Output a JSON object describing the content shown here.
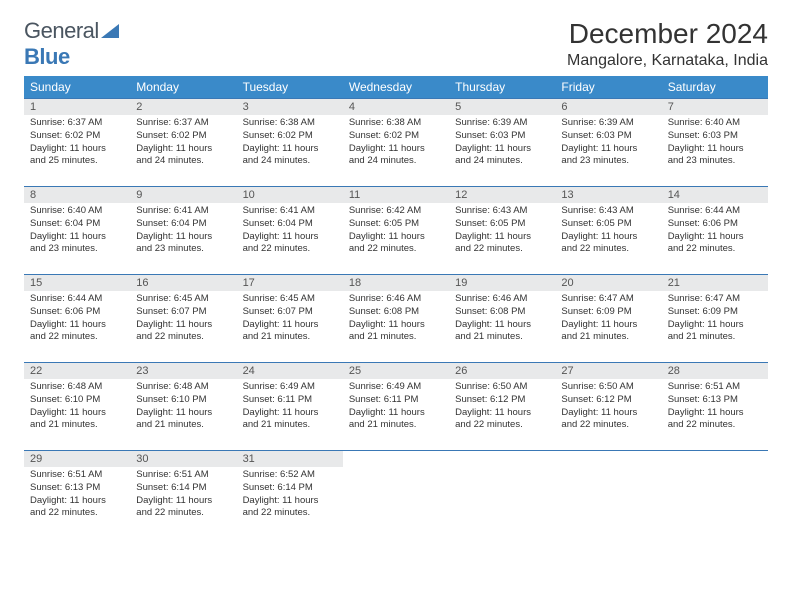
{
  "logo": {
    "general": "General",
    "blue": "Blue"
  },
  "title": "December 2024",
  "location": "Mangalore, Karnataka, India",
  "header_bg": "#3a8ac9",
  "header_text_color": "#ffffff",
  "daynum_bg": "#e8e9ea",
  "row_border_color": "#3a78b5",
  "weekdays": [
    "Sunday",
    "Monday",
    "Tuesday",
    "Wednesday",
    "Thursday",
    "Friday",
    "Saturday"
  ],
  "days": [
    {
      "n": "1",
      "sr": "6:37 AM",
      "ss": "6:02 PM",
      "dh": "11",
      "dm": "25"
    },
    {
      "n": "2",
      "sr": "6:37 AM",
      "ss": "6:02 PM",
      "dh": "11",
      "dm": "24"
    },
    {
      "n": "3",
      "sr": "6:38 AM",
      "ss": "6:02 PM",
      "dh": "11",
      "dm": "24"
    },
    {
      "n": "4",
      "sr": "6:38 AM",
      "ss": "6:02 PM",
      "dh": "11",
      "dm": "24"
    },
    {
      "n": "5",
      "sr": "6:39 AM",
      "ss": "6:03 PM",
      "dh": "11",
      "dm": "24"
    },
    {
      "n": "6",
      "sr": "6:39 AM",
      "ss": "6:03 PM",
      "dh": "11",
      "dm": "23"
    },
    {
      "n": "7",
      "sr": "6:40 AM",
      "ss": "6:03 PM",
      "dh": "11",
      "dm": "23"
    },
    {
      "n": "8",
      "sr": "6:40 AM",
      "ss": "6:04 PM",
      "dh": "11",
      "dm": "23"
    },
    {
      "n": "9",
      "sr": "6:41 AM",
      "ss": "6:04 PM",
      "dh": "11",
      "dm": "23"
    },
    {
      "n": "10",
      "sr": "6:41 AM",
      "ss": "6:04 PM",
      "dh": "11",
      "dm": "22"
    },
    {
      "n": "11",
      "sr": "6:42 AM",
      "ss": "6:05 PM",
      "dh": "11",
      "dm": "22"
    },
    {
      "n": "12",
      "sr": "6:43 AM",
      "ss": "6:05 PM",
      "dh": "11",
      "dm": "22"
    },
    {
      "n": "13",
      "sr": "6:43 AM",
      "ss": "6:05 PM",
      "dh": "11",
      "dm": "22"
    },
    {
      "n": "14",
      "sr": "6:44 AM",
      "ss": "6:06 PM",
      "dh": "11",
      "dm": "22"
    },
    {
      "n": "15",
      "sr": "6:44 AM",
      "ss": "6:06 PM",
      "dh": "11",
      "dm": "22"
    },
    {
      "n": "16",
      "sr": "6:45 AM",
      "ss": "6:07 PM",
      "dh": "11",
      "dm": "22"
    },
    {
      "n": "17",
      "sr": "6:45 AM",
      "ss": "6:07 PM",
      "dh": "11",
      "dm": "21"
    },
    {
      "n": "18",
      "sr": "6:46 AM",
      "ss": "6:08 PM",
      "dh": "11",
      "dm": "21"
    },
    {
      "n": "19",
      "sr": "6:46 AM",
      "ss": "6:08 PM",
      "dh": "11",
      "dm": "21"
    },
    {
      "n": "20",
      "sr": "6:47 AM",
      "ss": "6:09 PM",
      "dh": "11",
      "dm": "21"
    },
    {
      "n": "21",
      "sr": "6:47 AM",
      "ss": "6:09 PM",
      "dh": "11",
      "dm": "21"
    },
    {
      "n": "22",
      "sr": "6:48 AM",
      "ss": "6:10 PM",
      "dh": "11",
      "dm": "21"
    },
    {
      "n": "23",
      "sr": "6:48 AM",
      "ss": "6:10 PM",
      "dh": "11",
      "dm": "21"
    },
    {
      "n": "24",
      "sr": "6:49 AM",
      "ss": "6:11 PM",
      "dh": "11",
      "dm": "21"
    },
    {
      "n": "25",
      "sr": "6:49 AM",
      "ss": "6:11 PM",
      "dh": "11",
      "dm": "21"
    },
    {
      "n": "26",
      "sr": "6:50 AM",
      "ss": "6:12 PM",
      "dh": "11",
      "dm": "22"
    },
    {
      "n": "27",
      "sr": "6:50 AM",
      "ss": "6:12 PM",
      "dh": "11",
      "dm": "22"
    },
    {
      "n": "28",
      "sr": "6:51 AM",
      "ss": "6:13 PM",
      "dh": "11",
      "dm": "22"
    },
    {
      "n": "29",
      "sr": "6:51 AM",
      "ss": "6:13 PM",
      "dh": "11",
      "dm": "22"
    },
    {
      "n": "30",
      "sr": "6:51 AM",
      "ss": "6:14 PM",
      "dh": "11",
      "dm": "22"
    },
    {
      "n": "31",
      "sr": "6:52 AM",
      "ss": "6:14 PM",
      "dh": "11",
      "dm": "22"
    }
  ],
  "labels": {
    "sunrise": "Sunrise:",
    "sunset": "Sunset:",
    "daylight": "Daylight:",
    "hours": "hours",
    "and": "and",
    "minutes": "minutes."
  }
}
